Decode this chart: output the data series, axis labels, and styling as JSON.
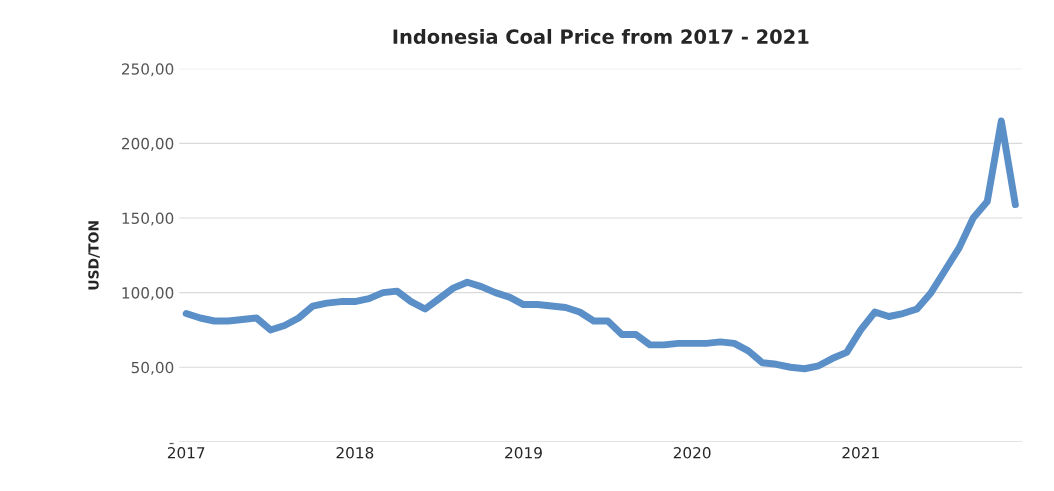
{
  "chart_data": {
    "type": "line",
    "title": "Indonesia Coal Price from 2017 - 2021",
    "ylabel": "USD/TON",
    "categories": [
      "2017",
      null,
      null,
      null,
      null,
      null,
      null,
      null,
      null,
      null,
      null,
      null,
      "2018",
      null,
      null,
      null,
      null,
      null,
      null,
      null,
      null,
      null,
      null,
      null,
      "2019",
      null,
      null,
      null,
      null,
      null,
      null,
      null,
      null,
      null,
      null,
      null,
      "2020",
      null,
      null,
      null,
      null,
      null,
      null,
      null,
      null,
      null,
      null,
      null,
      "2021",
      null,
      null,
      null,
      null,
      null,
      null,
      null,
      null,
      null,
      null,
      null
    ],
    "series": [
      {
        "color": "#5b8fc7",
        "values": [
          86,
          83,
          81,
          81,
          82,
          83,
          75,
          78,
          83,
          91,
          93,
          94,
          94,
          96,
          100,
          101,
          94,
          89,
          96,
          103,
          107,
          104,
          100,
          97,
          92,
          92,
          91,
          90,
          87,
          81,
          81,
          72,
          72,
          65,
          65,
          66,
          66,
          66,
          67,
          66,
          61,
          53,
          52,
          50,
          49,
          51,
          56,
          60,
          75,
          87,
          84,
          86,
          89,
          100,
          115,
          130,
          150,
          161,
          215,
          159
        ]
      }
    ],
    "ylim": [
      0,
      250
    ],
    "yticks": [
      {
        "value": 0,
        "label": "-"
      },
      {
        "value": 50,
        "label": "50,00"
      },
      {
        "value": 100,
        "label": "100,00"
      },
      {
        "value": 150,
        "label": "150,00"
      },
      {
        "value": 200,
        "label": "200,00"
      },
      {
        "value": 250,
        "label": "250,00"
      }
    ],
    "grid": "y",
    "legend": false
  }
}
